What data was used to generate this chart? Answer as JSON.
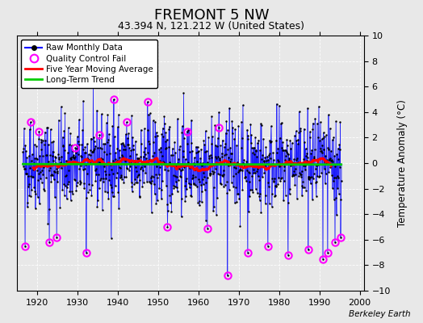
{
  "title": "FREMONT 5 NW",
  "subtitle": "43.394 N, 121.212 W (United States)",
  "ylabel": "Temperature Anomaly (°C)",
  "watermark": "Berkeley Earth",
  "xlim": [
    1915,
    2001
  ],
  "ylim": [
    -10,
    10
  ],
  "yticks": [
    -10,
    -8,
    -6,
    -4,
    -2,
    0,
    2,
    4,
    6,
    8,
    10
  ],
  "xticks": [
    1920,
    1930,
    1940,
    1950,
    1960,
    1970,
    1980,
    1990,
    2000
  ],
  "bg_color": "#e8e8e8",
  "grid_color": "#ffffff",
  "raw_color": "#0000ff",
  "ma_color": "#ff0000",
  "trend_color": "#00cc00",
  "qc_color": "#ff00ff",
  "seed": 42,
  "n_months": 948,
  "start_year": 1916.5,
  "trend_slope": -0.0015,
  "qc_fail_indices": [
    6,
    22,
    48,
    78,
    100,
    156,
    188,
    228,
    270,
    308,
    370,
    430,
    488,
    548,
    582,
    608,
    668,
    728,
    788,
    848,
    892,
    906,
    928,
    945
  ],
  "qc_fail_values": [
    -6.5,
    3.2,
    2.5,
    -6.2,
    -5.8,
    1.2,
    -7.0,
    2.2,
    5.0,
    3.2,
    4.8,
    -5.0,
    2.5,
    -5.1,
    2.8,
    -8.8,
    -7.0,
    -6.5,
    -7.2,
    -6.8,
    -7.5,
    -7.0,
    -6.2,
    -5.8
  ]
}
